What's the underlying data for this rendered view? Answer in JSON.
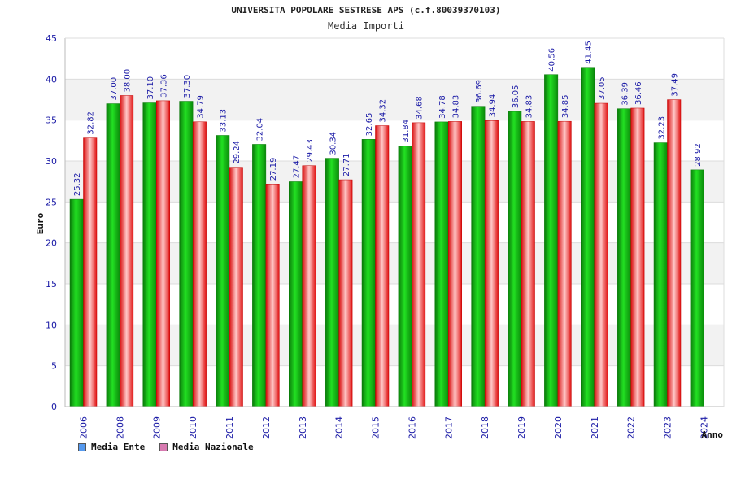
{
  "chart_data": {
    "type": "bar",
    "title": "UNIVERSITA POPOLARE SESTRESE APS (c.f.80039370103)",
    "subtitle": "Media Importi",
    "xlabel": "Anno",
    "ylabel": "Euro",
    "ylim": [
      0,
      45
    ],
    "yticks": [
      "0",
      "5",
      "10",
      "15",
      "20",
      "25",
      "30",
      "35",
      "40",
      "45"
    ],
    "grid": true,
    "legend_position": "bottom-left",
    "categories": [
      "2006",
      "2008",
      "2009",
      "2010",
      "2011",
      "2012",
      "2013",
      "2014",
      "2015",
      "2016",
      "2017",
      "2018",
      "2019",
      "2020",
      "2021",
      "2022",
      "2023",
      "2024"
    ],
    "series": [
      {
        "name": "Media Ente",
        "color": "#00b000",
        "legend_color": "#5599ee",
        "values": [
          25.32,
          37.0,
          37.1,
          37.3,
          33.13,
          32.04,
          27.47,
          30.34,
          32.65,
          31.84,
          34.78,
          36.69,
          36.05,
          40.56,
          41.45,
          36.39,
          32.23,
          28.92
        ],
        "labels": [
          "25.32",
          "37.00",
          "37.10",
          "37.30",
          "33.13",
          "32.04",
          "27.47",
          "30.34",
          "32.65",
          "31.84",
          "34.78",
          "36.69",
          "36.05",
          "40.56",
          "41.45",
          "36.39",
          "32.23",
          "28.92"
        ]
      },
      {
        "name": "Media Nazionale",
        "color": "#e81010",
        "legend_color": "#d77ab0",
        "values": [
          32.82,
          38.0,
          37.36,
          34.79,
          29.24,
          27.19,
          29.43,
          27.71,
          34.32,
          34.68,
          34.83,
          34.94,
          34.83,
          34.85,
          37.05,
          36.46,
          37.49,
          null
        ],
        "labels": [
          "32.82",
          "38.00",
          "37.36",
          "34.79",
          "29.24",
          "27.19",
          "29.43",
          "27.71",
          "34.32",
          "34.68",
          "34.83",
          "34.94",
          "34.83",
          "34.85",
          "37.05",
          "36.46",
          "37.49",
          ""
        ]
      }
    ]
  }
}
